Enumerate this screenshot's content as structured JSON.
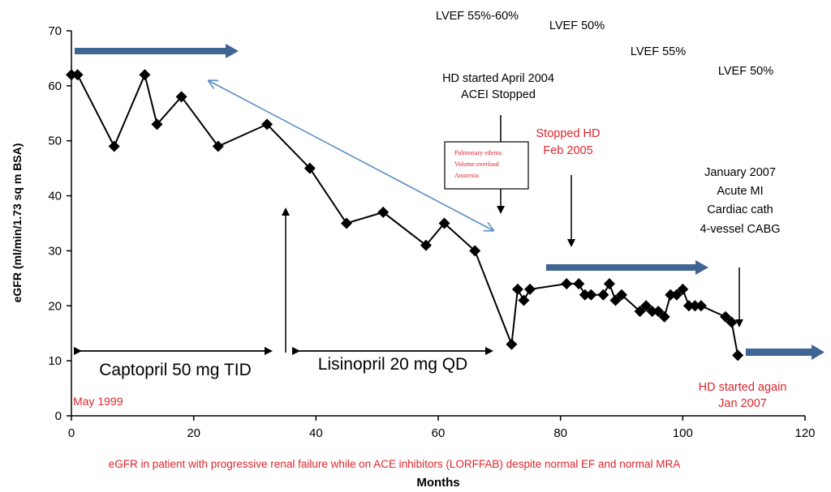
{
  "chart_data": {
    "type": "line",
    "ylabel": "eGFR (ml/min/1.73 sq m BSA)",
    "xlabel": "Months",
    "caption": "eGFR in patient with progressive renal failure while on ACE inhibitors (LORFFAB) despite normal EF and normal MRA",
    "xlim": [
      0,
      120
    ],
    "ylim": [
      0,
      70
    ],
    "x_ticks": [
      0,
      20,
      40,
      60,
      80,
      100,
      120
    ],
    "y_ticks": [
      0,
      10,
      20,
      30,
      40,
      50,
      60,
      70
    ],
    "grid": false,
    "series": [
      {
        "x": [
          0,
          1,
          7,
          12,
          14,
          18,
          24,
          32,
          39,
          45,
          51,
          58,
          61,
          66,
          72,
          73,
          74,
          75,
          81,
          83,
          84,
          85,
          87,
          88,
          89,
          90,
          93,
          94,
          95,
          96,
          97,
          98,
          99,
          100,
          101,
          102,
          103,
          107,
          108,
          109
        ],
        "y": [
          62,
          62,
          49,
          62,
          53,
          58,
          49,
          53,
          45,
          35,
          37,
          31,
          35,
          30,
          13,
          23,
          21,
          23,
          24,
          24,
          22,
          22,
          22,
          24,
          21,
          22,
          19,
          20,
          19,
          19,
          18,
          22,
          22,
          23,
          20,
          20,
          20,
          18,
          17,
          11
        ]
      }
    ],
    "annotations": {
      "lvef": [
        "LVEF 55%-60%",
        "LVEF 50%",
        "LVEF 55%",
        "LVEF 50%"
      ],
      "hd_started": [
        "HD started April 2004",
        "ACEI Stopped"
      ],
      "box_lines": [
        "Pulmonary edema",
        "Volume overload",
        "Anorexia"
      ],
      "stopped_hd": [
        "Stopped HD",
        "Feb 2005"
      ],
      "january_2007": [
        "January 2007",
        "Acute MI",
        "Cardiac cath",
        "4-vessel CABG"
      ],
      "captopril": "Captopril 50 mg TID",
      "lisinopril": "Lisinopril 20 mg QD",
      "may_1999": "May 1999",
      "hd_again": [
        "HD started again",
        "Jan 2007"
      ]
    },
    "colors": {
      "line": "#000000",
      "marker": "#000000",
      "thick_arrow": "#3f6594",
      "thin_arrow": "#5b8ec4",
      "red_text": "#e0242b"
    }
  }
}
